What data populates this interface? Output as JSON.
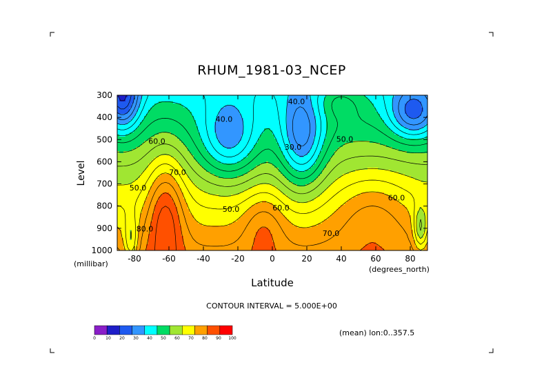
{
  "chart_data": {
    "type": "heatmap",
    "subtype": "filled-contour",
    "title": "RHUM_1981-03_NCEP",
    "xlabel": "Latitude",
    "ylabel": "Level",
    "x_unit_label": "(degrees_north)",
    "y_unit_label": "(millibar)",
    "xlim": [
      -90,
      90
    ],
    "ylim": [
      1000,
      300
    ],
    "x_ticks": [
      -80,
      -60,
      -40,
      -20,
      0,
      20,
      40,
      60,
      80
    ],
    "y_ticks": [
      300,
      400,
      500,
      600,
      700,
      800,
      900,
      1000
    ],
    "x_tick_labels": [
      "-80",
      "-60",
      "-40",
      "-20",
      "0",
      "20",
      "40",
      "60",
      "80"
    ],
    "y_tick_labels": [
      "300",
      "400",
      "500",
      "600",
      "700",
      "800",
      "900",
      "1000"
    ],
    "contour_interval_text": "CONTOUR INTERVAL = 5.000E+00",
    "annotation": "(mean) lon:0..357.5",
    "colorbar": {
      "levels": [
        0,
        10,
        20,
        30,
        40,
        50,
        60,
        70,
        80,
        90,
        100
      ],
      "labels": [
        "0",
        "10",
        "20",
        "30",
        "40",
        "50",
        "60",
        "70",
        "80",
        "90",
        "100"
      ],
      "colors": [
        "#8a1ec8",
        "#1e1ec8",
        "#1e5af0",
        "#3296ff",
        "#00ffff",
        "#00dc64",
        "#a0e632",
        "#ffff00",
        "#ffa000",
        "#ff5000",
        "#ff0000"
      ]
    },
    "contour_labels": [
      {
        "text": "40.0",
        "lat": -28,
        "lev": 420
      },
      {
        "text": "40.0",
        "lat": 14,
        "lev": 340
      },
      {
        "text": "30.0",
        "lat": 12,
        "lev": 545
      },
      {
        "text": "50.0",
        "lat": 42,
        "lev": 510
      },
      {
        "text": "60.0",
        "lat": -67,
        "lev": 520
      },
      {
        "text": "70.0",
        "lat": -55,
        "lev": 660
      },
      {
        "text": "50.0",
        "lat": -78,
        "lev": 730
      },
      {
        "text": "50.0",
        "lat": -24,
        "lev": 825
      },
      {
        "text": "60.0",
        "lat": 5,
        "lev": 820
      },
      {
        "text": "60.0",
        "lat": 72,
        "lev": 775
      },
      {
        "text": "80.0",
        "lat": -74,
        "lev": 915
      },
      {
        "text": "70.0",
        "lat": 34,
        "lev": 935
      }
    ]
  }
}
